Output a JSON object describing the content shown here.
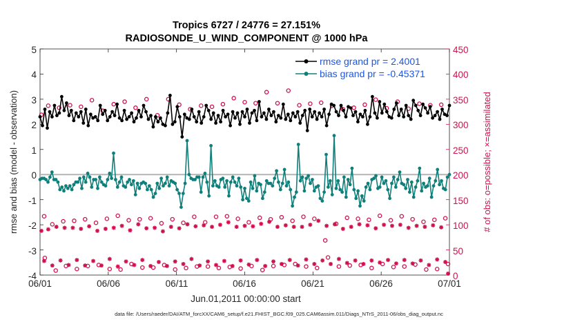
{
  "chart_data": {
    "type": "line",
    "title": [
      "Tropics 6727 / 24776 = 27.151%",
      "RADIOSONDE_U_WIND_COMPONENT @ 1000 hPa"
    ],
    "xlabel": "Jun.01,2011 00:00:00 start",
    "ylabel": "rmse and bias (model - observation)",
    "y2label": "# of obs: o=possible; ×=assimilated",
    "footnote": "data file: /Users/raeder/DAI/ATM_forcXX/CAM6_setup/f.e21.FHIST_BGC.f09_025.CAM6assim.011/Diags_NTrS_2011-06/obs_diag_output.nc",
    "xticks": [
      "06/01",
      "06/06",
      "06/11",
      "06/16",
      "06/21",
      "06/26",
      "07/01"
    ],
    "xlim": [
      0,
      30
    ],
    "ylim": [
      -4,
      5
    ],
    "yticks": [
      "-4",
      "-3",
      "-2",
      "-1",
      "0",
      "1",
      "2",
      "3",
      "4",
      "5"
    ],
    "y2lim": [
      0,
      450
    ],
    "y2ticks": [
      "0",
      "50",
      "100",
      "150",
      "200",
      "250",
      "300",
      "350",
      "400",
      "450"
    ],
    "legend_position": "top-right",
    "colors": {
      "rmse": "#000000",
      "bias": "#0f7f7a",
      "obs": "#d0104c",
      "legend_text": "#1a56e8",
      "zero_line": "#b4b4b4"
    },
    "series": [
      {
        "name": "rmse grand pr = 2.4001",
        "axis": "left",
        "values": [
          2.3,
          1.95,
          2.6,
          1.85,
          2.5,
          2.3,
          2.75,
          2.35,
          2.45,
          3.1,
          2.55,
          2.85,
          2.35,
          2.55,
          2.15,
          2.45,
          2.3,
          2.5,
          2.05,
          2.6,
          1.95,
          2.4,
          2.25,
          2.3,
          2.15,
          2.75,
          2.4,
          2.55,
          2.15,
          2.3,
          2.5,
          2.35,
          2.8,
          2.25,
          2.15,
          2.55,
          2.2,
          2.3,
          2.45,
          2.1,
          2.25,
          2.55,
          2.3,
          2.75,
          2.5,
          2.2,
          2.35,
          1.9,
          2.3,
          2.1,
          2.25,
          2.0,
          1.95,
          2.45,
          3.15,
          2.0,
          2.1,
          2.7,
          2.3,
          1.5,
          2.4,
          2.25,
          2.2,
          2.6,
          2.3,
          2.1,
          2.5,
          2.05,
          2.3,
          2.75,
          2.55,
          2.2,
          2.45,
          2.05,
          2.35,
          2.1,
          2.55,
          2.3,
          2.4,
          1.95,
          2.5,
          2.25,
          2.45,
          2.0,
          2.5,
          2.3,
          2.6,
          2.05,
          2.45,
          2.55,
          2.15,
          2.9,
          2.3,
          2.45,
          2.2,
          2.6,
          2.35,
          2.5,
          2.1,
          2.35,
          2.25,
          2.8,
          2.2,
          2.4,
          2.15,
          2.45,
          2.3,
          2.5,
          2.05,
          2.35,
          2.55,
          1.75,
          2.6,
          2.3,
          2.5,
          2.2,
          2.45,
          2.3,
          2.6,
          1.95,
          2.4,
          2.8,
          2.75,
          2.5,
          2.35,
          2.75,
          2.55,
          2.3,
          2.7,
          2.65,
          2.35,
          2.5,
          2.1,
          2.4,
          2.3,
          2.55,
          2.0,
          2.3,
          3.1,
          2.45,
          2.25,
          2.9,
          2.45,
          2.8,
          2.5,
          2.3,
          2.25,
          2.6,
          2.85,
          2.35,
          2.6,
          2.3,
          2.75,
          2.35,
          2.2,
          2.95,
          2.75,
          2.55,
          2.35,
          2.8,
          2.65,
          2.45,
          2.7,
          2.25,
          2.35,
          2.5,
          2.2,
          2.6,
          2.4,
          2.35,
          2.75
        ]
      },
      {
        "name": "bias grand pr = -0.45371",
        "axis": "left",
        "values": [
          -0.2,
          -0.15,
          -0.15,
          -0.2,
          -0.3,
          -0.1,
          0.1,
          -0.2,
          -0.2,
          -0.3,
          -0.6,
          -0.5,
          -0.65,
          -0.45,
          -0.55,
          -0.45,
          -0.6,
          -0.4,
          -0.3,
          -0.3,
          -0.15,
          -0.55,
          -0.1,
          -0.3,
          0.05,
          -0.1,
          -0.5,
          -0.2,
          -0.2,
          -0.55,
          -0.1,
          -0.3,
          -0.4,
          -0.45,
          -0.2,
          0.05,
          -0.15,
          0.85,
          -0.2,
          -0.5,
          -0.3,
          -0.1,
          -0.45,
          -0.5,
          -0.3,
          -0.2,
          -0.4,
          -0.25,
          -0.8,
          -0.35,
          -0.55,
          -0.35,
          -0.3,
          -0.35,
          -0.6,
          -0.45,
          -0.6,
          -0.9,
          -0.75,
          -0.35,
          -0.55,
          -0.15,
          -0.45,
          -0.35,
          -0.1,
          -0.45,
          -0.25,
          -0.3,
          -0.35,
          -0.6,
          -0.75,
          -1.3,
          -0.75,
          -0.35,
          1.35,
          0.0,
          -0.15,
          -0.2,
          -0.2,
          -0.1,
          -0.1,
          -0.7,
          -0.1,
          0.05,
          -0.3,
          -0.85,
          1.15,
          -0.45,
          -0.25,
          -0.45,
          -0.5,
          -0.2,
          -0.15,
          -0.5,
          -0.25,
          -0.85,
          -0.3,
          -0.1,
          -0.3,
          -0.45,
          -0.15,
          -0.5,
          -1.0,
          -0.55,
          -0.95,
          -1.05,
          -0.3,
          -0.55,
          -0.05,
          -0.65,
          -0.35,
          -0.4,
          -0.95,
          -0.7,
          -0.25,
          -0.35,
          -0.35,
          -0.45,
          -0.15,
          0.15,
          -0.3,
          -0.6,
          -0.35,
          0.2,
          -0.45,
          -0.3,
          -0.6,
          -1.25,
          -0.9,
          -0.7,
          1.2,
          -0.25,
          -0.1,
          -0.65,
          -0.15,
          -0.05,
          -0.35,
          -0.2,
          -0.65,
          -0.5,
          -0.45,
          -0.95,
          -1.05,
          -0.7,
          0.8,
          -0.5,
          -0.25,
          -0.8,
          1.55,
          -0.55,
          -0.25,
          -0.6,
          -0.7,
          -0.1,
          -0.9,
          -0.2,
          -0.4,
          0.25,
          -0.6,
          -0.95,
          -0.65,
          -1.25,
          -0.85,
          -1.05,
          -0.5,
          -0.35,
          -0.6,
          -0.2,
          -0.15,
          -0.05,
          -0.55,
          -0.5,
          -0.1,
          -0.35,
          -0.25,
          -0.6,
          -0.95,
          -0.35,
          -0.1,
          -0.5,
          -0.2,
          0.1,
          -0.35,
          -0.4,
          -0.55,
          -0.2,
          -0.7,
          -0.3,
          -0.9,
          -0.5,
          -0.25,
          0.25,
          -0.65,
          -0.35,
          -0.5,
          -0.45,
          -0.15,
          -0.9,
          -0.45,
          -0.25,
          0.2,
          -0.4,
          -0.25,
          -0.55,
          -0.6,
          -0.1,
          0.0
        ]
      }
    ],
    "obs_possible": [
      [
        0.1,
        319
      ],
      [
        0.3,
        117
      ],
      [
        0.35,
        34
      ],
      [
        0.6,
        337
      ],
      [
        0.9,
        101
      ],
      [
        1.15,
        9
      ],
      [
        1.4,
        333
      ],
      [
        1.7,
        107
      ],
      [
        1.9,
        18
      ],
      [
        2.2,
        338
      ],
      [
        2.5,
        108
      ],
      [
        2.7,
        12
      ],
      [
        3.0,
        335
      ],
      [
        3.3,
        111
      ],
      [
        3.5,
        18
      ],
      [
        3.8,
        348
      ],
      [
        4.1,
        104
      ],
      [
        4.3,
        20
      ],
      [
        4.6,
        327
      ],
      [
        4.9,
        112
      ],
      [
        5.1,
        12
      ],
      [
        5.4,
        340
      ],
      [
        5.7,
        118
      ],
      [
        5.9,
        11
      ],
      [
        6.2,
        345
      ],
      [
        6.5,
        109
      ],
      [
        6.7,
        22
      ],
      [
        7.0,
        333
      ],
      [
        7.3,
        111
      ],
      [
        7.5,
        15
      ],
      [
        7.8,
        350
      ],
      [
        8.1,
        113
      ],
      [
        8.3,
        15
      ],
      [
        8.6,
        318
      ],
      [
        8.9,
        103
      ],
      [
        9.1,
        20
      ],
      [
        9.4,
        350
      ],
      [
        9.7,
        111
      ],
      [
        9.9,
        11
      ],
      [
        10.2,
        339
      ],
      [
        10.5,
        104
      ],
      [
        10.7,
        14
      ],
      [
        11.0,
        330
      ],
      [
        11.3,
        116
      ],
      [
        11.5,
        17
      ],
      [
        11.8,
        337
      ],
      [
        12.1,
        105
      ],
      [
        12.3,
        17
      ],
      [
        12.6,
        335
      ],
      [
        12.9,
        116
      ],
      [
        13.1,
        14
      ],
      [
        13.4,
        340
      ],
      [
        13.7,
        117
      ],
      [
        13.9,
        16
      ],
      [
        14.2,
        352
      ],
      [
        14.5,
        112
      ],
      [
        14.7,
        13
      ],
      [
        15.0,
        344
      ],
      [
        15.3,
        105
      ],
      [
        15.5,
        18
      ],
      [
        15.8,
        342
      ],
      [
        16.1,
        114
      ],
      [
        16.3,
        10
      ],
      [
        16.6,
        364
      ],
      [
        16.9,
        111
      ],
      [
        17.1,
        18
      ],
      [
        17.4,
        342
      ],
      [
        17.7,
        115
      ],
      [
        17.9,
        20
      ],
      [
        18.2,
        367
      ],
      [
        18.5,
        108
      ],
      [
        18.7,
        22
      ],
      [
        19.0,
        338
      ],
      [
        19.3,
        116
      ],
      [
        19.5,
        17
      ],
      [
        19.8,
        341
      ],
      [
        20.1,
        112
      ],
      [
        20.3,
        14
      ],
      [
        20.6,
        343
      ],
      [
        20.9,
        69
      ],
      [
        21.1,
        35
      ],
      [
        21.4,
        337
      ],
      [
        21.7,
        102
      ],
      [
        21.9,
        17
      ],
      [
        22.2,
        330
      ],
      [
        22.5,
        114
      ],
      [
        22.7,
        19
      ],
      [
        23.0,
        333
      ],
      [
        23.3,
        112
      ],
      [
        23.5,
        20
      ],
      [
        23.8,
        339
      ],
      [
        24.1,
        110
      ],
      [
        24.3,
        14
      ],
      [
        24.6,
        349
      ],
      [
        24.9,
        118
      ],
      [
        25.1,
        22
      ],
      [
        25.4,
        332
      ],
      [
        25.7,
        109
      ],
      [
        25.9,
        16
      ],
      [
        26.2,
        345
      ],
      [
        26.5,
        117
      ],
      [
        26.7,
        17
      ],
      [
        27.0,
        331
      ],
      [
        27.3,
        111
      ],
      [
        27.5,
        21
      ],
      [
        27.8,
        341
      ],
      [
        28.1,
        106
      ],
      [
        28.3,
        11
      ],
      [
        28.6,
        338
      ],
      [
        28.9,
        110
      ],
      [
        29.1,
        12
      ],
      [
        29.4,
        339
      ],
      [
        29.7,
        113
      ],
      [
        29.9,
        22
      ]
    ],
    "obs_assimilated": [
      [
        0.1,
        88
      ],
      [
        0.3,
        28
      ],
      [
        0.6,
        91
      ],
      [
        0.9,
        19
      ],
      [
        1.2,
        96
      ],
      [
        1.5,
        29
      ],
      [
        1.8,
        94
      ],
      [
        2.1,
        20
      ],
      [
        2.4,
        94
      ],
      [
        2.7,
        30
      ],
      [
        3.0,
        92
      ],
      [
        3.3,
        19
      ],
      [
        3.6,
        97
      ],
      [
        3.9,
        28
      ],
      [
        4.2,
        88
      ],
      [
        4.5,
        19
      ],
      [
        4.8,
        92
      ],
      [
        5.1,
        32
      ],
      [
        5.4,
        94
      ],
      [
        5.7,
        17
      ],
      [
        6.0,
        98
      ],
      [
        6.3,
        27
      ],
      [
        6.6,
        89
      ],
      [
        6.9,
        20
      ],
      [
        7.2,
        101
      ],
      [
        7.5,
        30
      ],
      [
        7.8,
        93
      ],
      [
        8.1,
        18
      ],
      [
        8.4,
        94
      ],
      [
        8.7,
        26
      ],
      [
        9.0,
        87
      ],
      [
        9.3,
        18
      ],
      [
        9.6,
        96
      ],
      [
        9.9,
        27
      ],
      [
        10.2,
        93
      ],
      [
        10.5,
        22
      ],
      [
        10.8,
        101
      ],
      [
        11.1,
        32
      ],
      [
        11.4,
        97
      ],
      [
        11.7,
        19
      ],
      [
        12.0,
        99
      ],
      [
        12.3,
        27
      ],
      [
        12.6,
        96
      ],
      [
        12.9,
        20
      ],
      [
        13.2,
        100
      ],
      [
        13.5,
        28
      ],
      [
        13.8,
        105
      ],
      [
        14.1,
        18
      ],
      [
        14.4,
        96
      ],
      [
        14.7,
        29
      ],
      [
        15.0,
        98
      ],
      [
        15.3,
        21
      ],
      [
        15.6,
        97
      ],
      [
        15.9,
        30
      ],
      [
        16.2,
        102
      ],
      [
        16.5,
        18
      ],
      [
        16.8,
        106
      ],
      [
        17.1,
        27
      ],
      [
        17.4,
        96
      ],
      [
        17.7,
        22
      ],
      [
        18.0,
        99
      ],
      [
        18.3,
        30
      ],
      [
        18.6,
        96
      ],
      [
        18.9,
        19
      ],
      [
        19.2,
        96
      ],
      [
        19.5,
        31
      ],
      [
        19.8,
        100
      ],
      [
        20.1,
        22
      ],
      [
        20.4,
        108
      ],
      [
        20.7,
        29
      ],
      [
        21.0,
        98
      ],
      [
        21.3,
        22
      ],
      [
        21.6,
        101
      ],
      [
        21.9,
        32
      ],
      [
        22.2,
        92
      ],
      [
        22.5,
        24
      ],
      [
        22.8,
        96
      ],
      [
        23.1,
        29
      ],
      [
        23.4,
        101
      ],
      [
        23.7,
        22
      ],
      [
        24.0,
        99
      ],
      [
        24.3,
        29
      ],
      [
        24.6,
        93
      ],
      [
        24.9,
        25
      ],
      [
        25.2,
        100
      ],
      [
        25.5,
        30
      ],
      [
        25.8,
        98
      ],
      [
        26.1,
        23
      ],
      [
        26.4,
        100
      ],
      [
        26.7,
        30
      ],
      [
        27.0,
        94
      ],
      [
        27.3,
        23
      ],
      [
        27.6,
        98
      ],
      [
        27.9,
        29
      ],
      [
        28.2,
        96
      ],
      [
        28.5,
        20
      ],
      [
        28.8,
        99
      ],
      [
        29.1,
        31
      ],
      [
        29.4,
        95
      ],
      [
        29.7,
        26
      ],
      [
        29.9,
        3
      ]
    ]
  }
}
